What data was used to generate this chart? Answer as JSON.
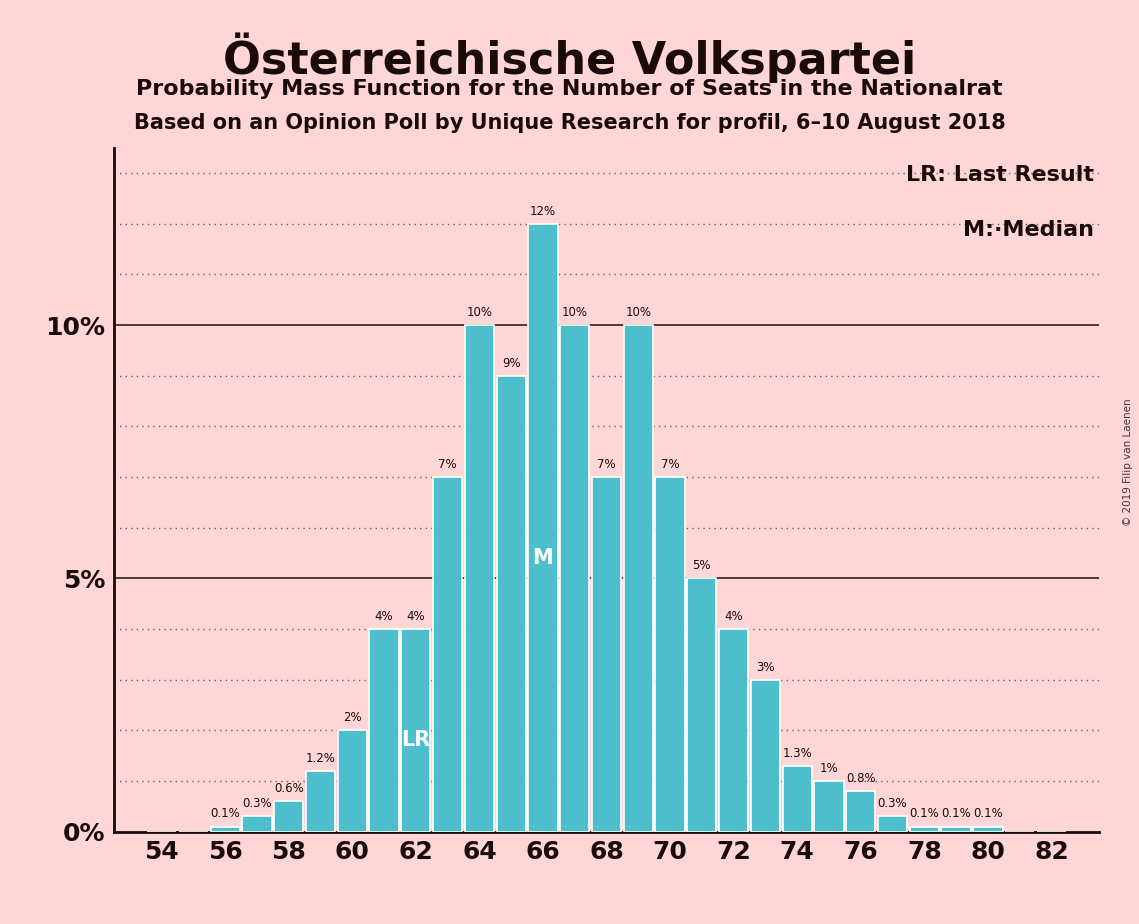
{
  "title": "Österreichische Volkspartei",
  "subtitle1": "Probability Mass Function for the Number of Seats in the Nationalrat",
  "subtitle2": "Based on an Opinion Poll by Unique Research for profil, 6–10 August 2018",
  "watermark": "© 2019 Filip van Laenen",
  "seats": [
    54,
    55,
    56,
    57,
    58,
    59,
    60,
    61,
    62,
    63,
    64,
    65,
    66,
    67,
    68,
    69,
    70,
    71,
    72,
    73,
    74,
    75,
    76,
    77,
    78,
    79,
    80,
    81,
    82
  ],
  "probabilities": [
    0.0,
    0.0,
    0.1,
    0.3,
    0.6,
    1.2,
    2.0,
    4.0,
    4.0,
    7.0,
    10.0,
    9.0,
    12.0,
    10.0,
    7.0,
    10.0,
    7.0,
    5.0,
    4.0,
    3.0,
    1.3,
    1.0,
    0.8,
    0.3,
    0.1,
    0.1,
    0.1,
    0.0,
    0.0
  ],
  "bar_color": "#4DBFCC",
  "bar_edge_color": "#FFFFFF",
  "background_color": "#FFD6D6",
  "text_color": "#1A0A0A",
  "last_result_seat": 62,
  "median_seat": 66,
  "lr_label": "LR",
  "m_label": "M",
  "legend_lr": "LR: Last Result",
  "legend_m": "M:·Median",
  "ytick_labels": [
    "0%",
    "5%",
    "10%"
  ],
  "ytick_values": [
    0,
    5,
    10
  ],
  "ymax": 13.5,
  "grid_lines": [
    1,
    2,
    3,
    4,
    5,
    6,
    7,
    8,
    9,
    10,
    11,
    12,
    13
  ],
  "solid_lines": [
    5,
    10
  ]
}
